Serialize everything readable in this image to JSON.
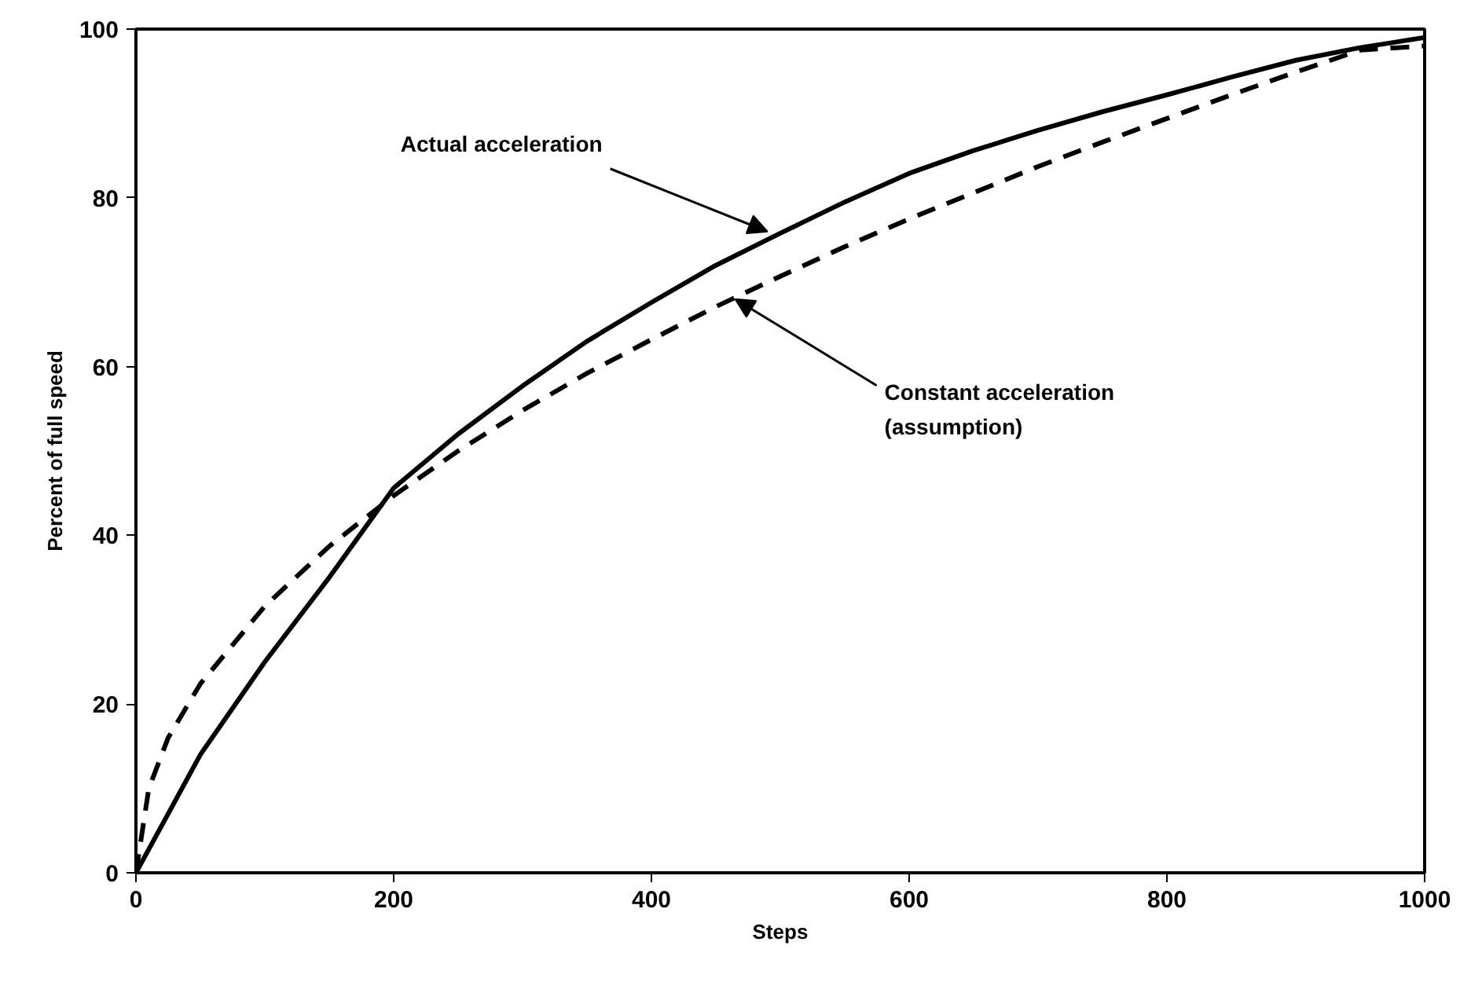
{
  "chart_data": {
    "type": "line",
    "xlabel": "Steps",
    "ylabel": "Percent of full speed",
    "xlim": [
      0,
      1000
    ],
    "ylim": [
      0,
      100
    ],
    "xticks": [
      0,
      200,
      400,
      600,
      800,
      1000
    ],
    "yticks": [
      0,
      20,
      40,
      60,
      80,
      100
    ],
    "marker": "none",
    "series": [
      {
        "color": "#000000",
        "line_style": "solid",
        "x": [
          0,
          25,
          50,
          100,
          150,
          200,
          250,
          300,
          350,
          400,
          450,
          500,
          550,
          600,
          650,
          700,
          750,
          800,
          850,
          900,
          950,
          1000
        ],
        "values": [
          0,
          7,
          14,
          25,
          35,
          45.6,
          52,
          57.7,
          63,
          67.6,
          72,
          75.8,
          79.5,
          82.9,
          85.6,
          88,
          90.2,
          92.2,
          94.3,
          96.3,
          97.8,
          99
        ]
      },
      {
        "color": "#000000",
        "line_style": "dashed",
        "x": [
          0,
          10,
          25,
          50,
          100,
          150,
          200,
          250,
          300,
          350,
          400,
          450,
          500,
          550,
          600,
          650,
          700,
          750,
          800,
          850,
          900,
          950,
          1000
        ],
        "values": [
          0,
          10,
          16,
          22.4,
          31.6,
          38.7,
          44.7,
          50,
          54.8,
          59.2,
          63.2,
          67.1,
          70.7,
          74.2,
          77.5,
          80.6,
          83.7,
          86.6,
          89.4,
          92.2,
          94.9,
          97.5,
          98
        ]
      }
    ],
    "annotations": [
      {
        "text": "Actual acceleration",
        "x": 490,
        "y": 76
      },
      {
        "text": "Constant acceleration\n(assumption)",
        "x": 465,
        "y": 68
      }
    ]
  }
}
